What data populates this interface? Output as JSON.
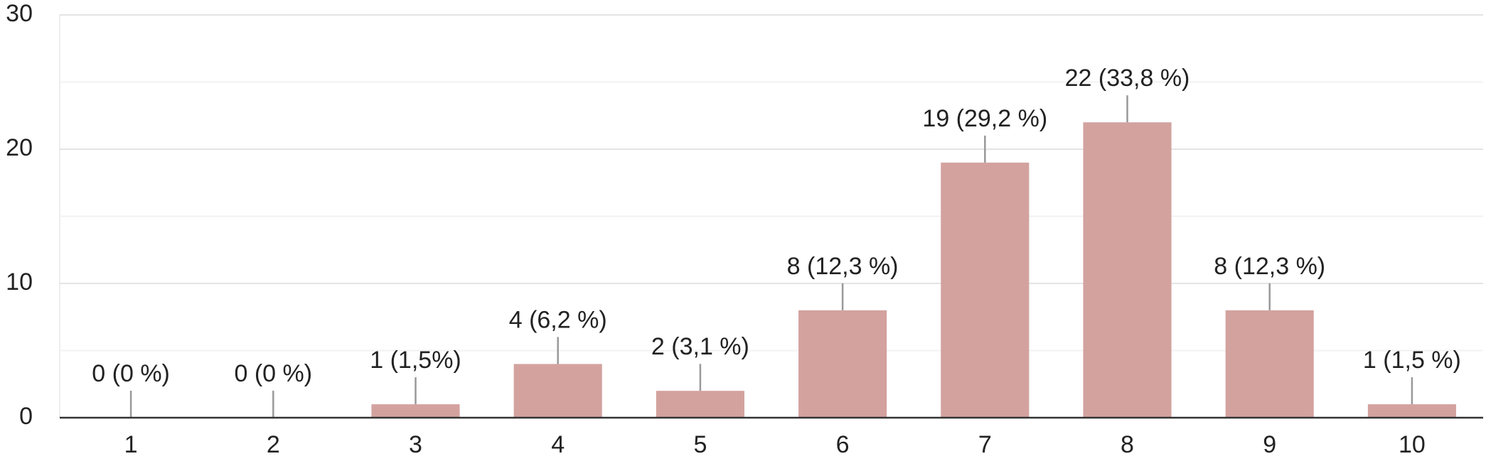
{
  "chart_data": {
    "type": "bar",
    "categories": [
      "1",
      "2",
      "3",
      "4",
      "5",
      "6",
      "7",
      "8",
      "9",
      "10"
    ],
    "values": [
      0,
      0,
      1,
      4,
      2,
      8,
      19,
      22,
      8,
      1
    ],
    "value_labels": [
      "0 (0 %)",
      "0 (0 %)",
      "1 (1,5%)",
      "4 (6,2 %)",
      "2 (3,1 %)",
      "8 (12,3 %)",
      "19 (29,2 %)",
      "22 (33,8 %)",
      "8 (12,3 %)",
      "1 (1,5 %)"
    ],
    "color": "#d3a29f",
    "ylim": [
      0,
      30
    ],
    "yticks": [
      0,
      10,
      20,
      30
    ],
    "minor_yticks": [
      5,
      15,
      25
    ],
    "grid": true
  }
}
